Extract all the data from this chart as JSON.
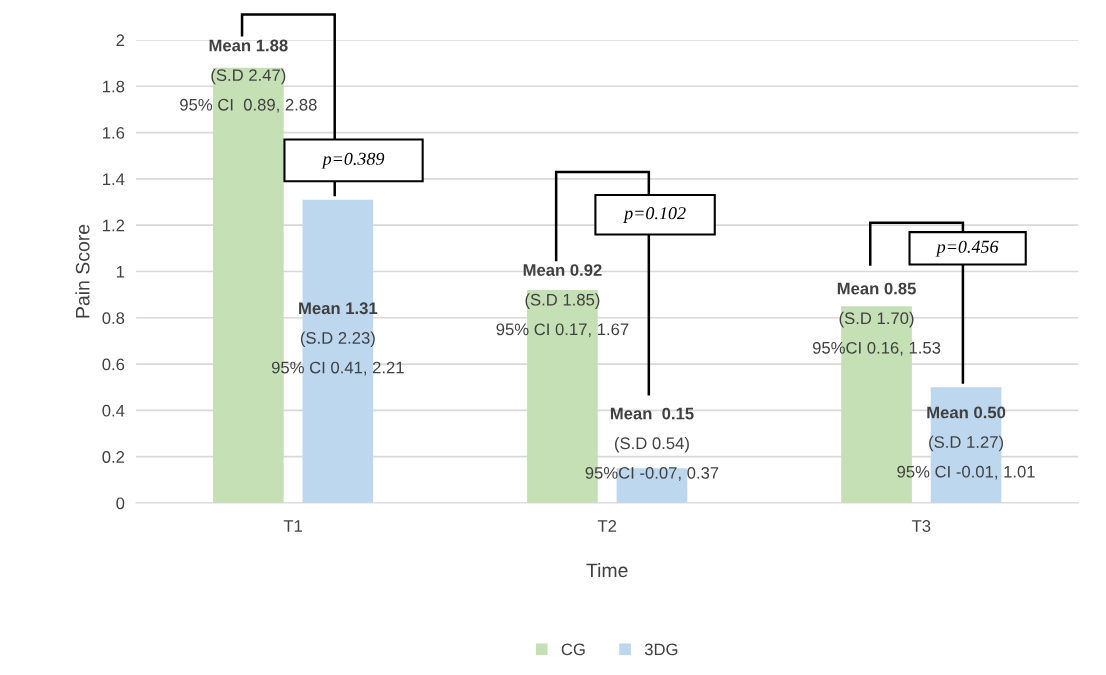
{
  "chart_data": {
    "type": "bar",
    "xlabel": "Time",
    "ylabel": "Pain Score",
    "categories": [
      "T1",
      "T2",
      "T3"
    ],
    "series": [
      {
        "name": "CG",
        "color": "#c5e0b4",
        "values": [
          1.88,
          0.92,
          0.85
        ]
      },
      {
        "name": "3DG",
        "color": "#bdd7ee",
        "values": [
          1.31,
          0.15,
          0.5
        ]
      }
    ],
    "ylim": [
      0,
      2
    ],
    "yticks": [
      0,
      {
        "value": 0.2,
        "label": "0.2"
      },
      {
        "value": 0.4,
        "label": "0.4"
      },
      {
        "value": 0.6,
        "label": "0.6"
      },
      {
        "value": 0.8,
        "label": "0.8"
      },
      1,
      {
        "value": 1.2,
        "label": "1.2"
      },
      {
        "value": 1.4,
        "label": "1.4"
      },
      {
        "value": 1.6,
        "label": "1.6"
      },
      {
        "value": 1.8,
        "label": "1.8"
      },
      2
    ],
    "grid": "y",
    "legend": "bottom",
    "annotations": [
      "Mean 1.88\n(S.D 2.47)\n95% CI  0.89, 2.88",
      "Mean 1.31\n(S.D 2.23)\n95% CI 0.41, 2.21",
      "Mean 0.92\n(S.D 1.85)\n95% CI 0.17, 1.67",
      "Mean  0.15\n(S.D 0.54)\n95%CI -0.07, 0.37",
      "Mean 0.85\n(S.D 1.70)\n95%CI 0.16, 1.53",
      "Mean 0.50\n(S.D 1.27)\n95% CI -0.01, 1.01",
      "p=0.389",
      "p=0.102",
      "p=0.456"
    ]
  }
}
